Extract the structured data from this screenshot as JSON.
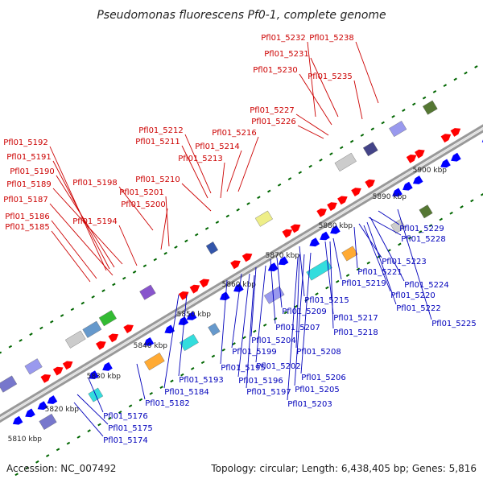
{
  "title": "Pseudomonas fluorescens Pf0-1, complete genome",
  "footer": {
    "accession": "Accession: NC_007492",
    "summary": "Topology: circular; Length: 6,438,405 bp; Genes: 5,816"
  },
  "colors": {
    "forward_label": "#cc0000",
    "reverse_label": "#0000bb",
    "forward_gene": "#ff0000",
    "reverse_gene": "#0000ff",
    "backbone": "#999999",
    "tick": "#006600"
  },
  "kbp_ticks": [
    "5810 kbp",
    "5820 kbp",
    "5830 kbp",
    "5840 kbp",
    "5850 kbp",
    "5860 kbp",
    "5870 kbp",
    "5880 kbp",
    "5890 kbp",
    "5900 kbp"
  ],
  "forward_labels": [
    "Pfl01_5232",
    "Pfl01_5238",
    "Pfl01_5231",
    "Pfl01_5230",
    "Pfl01_5235",
    "Pfl01_5227",
    "Pfl01_5226",
    "Pfl01_5212",
    "Pfl01_5216",
    "Pfl01_5211",
    "Pfl01_5214",
    "Pfl01_5213",
    "Pfl01_5192",
    "Pfl01_5191",
    "Pfl01_5190",
    "Pfl01_5198",
    "Pfl01_5210",
    "Pfl01_5189",
    "Pfl01_5201",
    "Pfl01_5187",
    "Pfl01_5200",
    "Pfl01_5194",
    "Pfl01_5186",
    "Pfl01_5185"
  ],
  "reverse_labels": [
    "Pfl01_5229",
    "Pfl01_5228",
    "Pfl01_5223",
    "Pfl01_5221",
    "Pfl01_5224",
    "Pfl01_5219",
    "Pfl01_5220",
    "Pfl01_5222",
    "Pfl01_5215",
    "Pfl01_5209",
    "Pfl01_5217",
    "Pfl01_5225",
    "Pfl01_5207",
    "Pfl01_5218",
    "Pfl01_5204",
    "Pfl01_5208",
    "Pfl01_5199",
    "Pfl01_5195",
    "Pfl01_5202",
    "Pfl01_5206",
    "Pfl01_5193",
    "Pfl01_5196",
    "Pfl01_5205",
    "Pfl01_5184",
    "Pfl01_5197",
    "Pfl01_5182",
    "Pfl01_5203",
    "Pfl01_5176",
    "Pfl01_5175",
    "Pfl01_5174"
  ]
}
